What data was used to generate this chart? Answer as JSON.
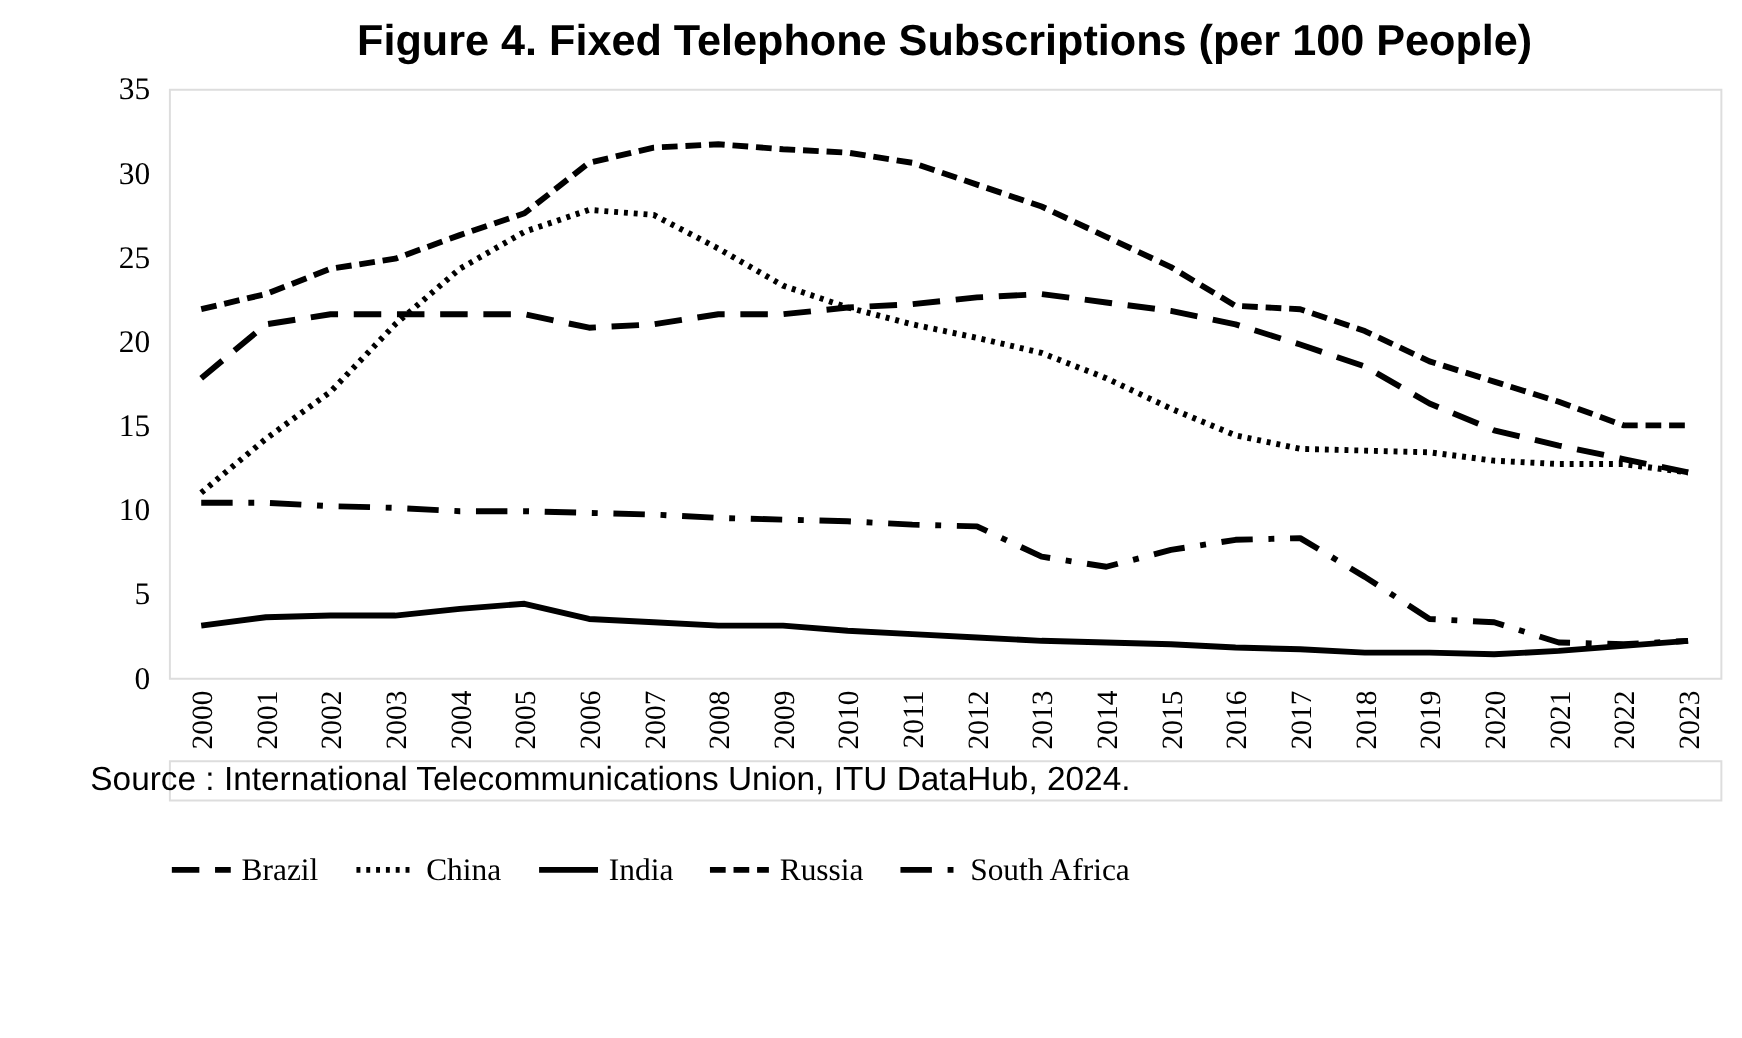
{
  "chart_data": {
    "type": "line",
    "title": "Figure 4. Fixed Telephone Subscriptions (per 100 People)",
    "categories": [
      "2000",
      "2001",
      "2002",
      "2003",
      "2004",
      "2005",
      "2006",
      "2007",
      "2008",
      "2009",
      "2010",
      "2011",
      "2012",
      "2013",
      "2014",
      "2015",
      "2016",
      "2017",
      "2018",
      "2019",
      "2020",
      "2021",
      "2022",
      "2023"
    ],
    "series": [
      {
        "name": "Brazil",
        "color": "#000000",
        "line_style": "dashed",
        "values": [
          17.8,
          21,
          21.6,
          21.6,
          21.6,
          21.6,
          20.8,
          21,
          21.6,
          21.6,
          22,
          22.2,
          22.6,
          22.8,
          22.3,
          21.8,
          21,
          19.8,
          18.5,
          16.3,
          14.7,
          13.8,
          13,
          12.2
        ]
      },
      {
        "name": "China",
        "color": "#000000",
        "line_style": "dotted",
        "values": [
          11,
          14.2,
          17,
          21,
          24.3,
          26.5,
          27.8,
          27.5,
          25.5,
          23.3,
          22,
          21,
          20.2,
          19.3,
          17.8,
          16,
          14.4,
          13.6,
          13.5,
          13.4,
          12.9,
          12.7,
          12.7,
          12.2
        ]
      },
      {
        "name": "India",
        "color": "#000000",
        "line_style": "solid",
        "values": [
          3.1,
          3.6,
          3.7,
          3.7,
          4.1,
          4.4,
          3.5,
          3.3,
          3.1,
          3.1,
          2.8,
          2.6,
          2.4,
          2.2,
          2.1,
          2.0,
          1.8,
          1.7,
          1.5,
          1.5,
          1.4,
          1.6,
          1.9,
          2.2
        ]
      },
      {
        "name": "Russia",
        "color": "#000000",
        "line_style": "dashed",
        "values": [
          21.9,
          22.8,
          24.3,
          24.9,
          26.3,
          27.6,
          30.6,
          31.5,
          31.7,
          31.4,
          31.2,
          30.6,
          29.3,
          28,
          26.2,
          24.4,
          22.1,
          21.9,
          20.6,
          18.8,
          17.6,
          16.4,
          15,
          15
        ]
      },
      {
        "name": "South Africa",
        "color": "#000000",
        "line_style": "dashdot",
        "values": [
          10.4,
          10.4,
          10.2,
          10.1,
          9.9,
          9.9,
          9.8,
          9.7,
          9.5,
          9.4,
          9.3,
          9.1,
          9.0,
          7.2,
          6.6,
          7.6,
          8.2,
          8.3,
          6,
          3.5,
          3.3,
          2.1,
          2,
          2.2
        ]
      }
    ],
    "ylim": [
      0,
      35
    ],
    "yticks": [
      0,
      5,
      10,
      15,
      20,
      25,
      30,
      35
    ],
    "grid": false,
    "legend": "bottom",
    "annotations": [
      "Source : International Telecommunications Union, ITU DataHub, 2024."
    ]
  }
}
